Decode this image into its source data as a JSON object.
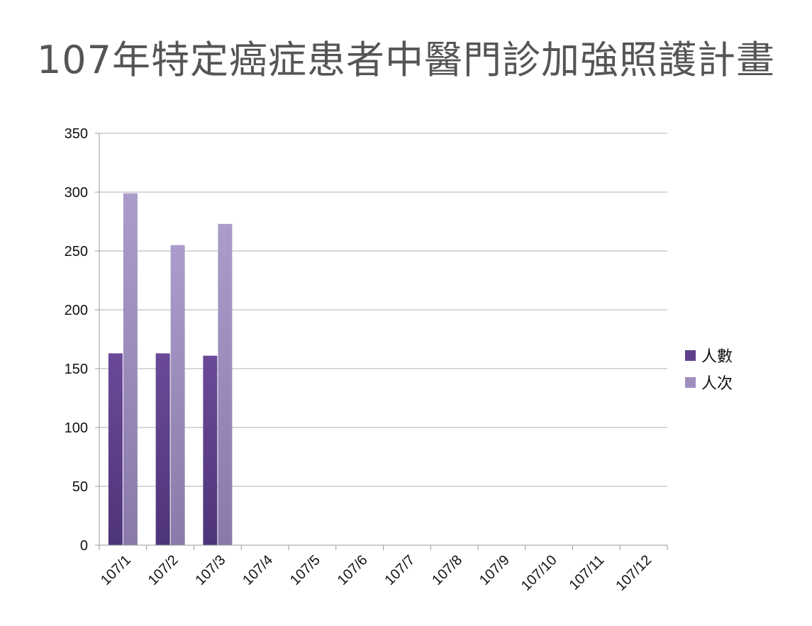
{
  "title": "107年特定癌症患者中醫門診加強照護計畫",
  "chart_data": {
    "type": "bar",
    "categories": [
      "107/1",
      "107/2",
      "107/3",
      "107/4",
      "107/5",
      "107/6",
      "107/7",
      "107/8",
      "107/9",
      "107/10",
      "107/11",
      "107/12"
    ],
    "series": [
      {
        "name": "人數",
        "values": [
          163,
          163,
          161,
          null,
          null,
          null,
          null,
          null,
          null,
          null,
          null,
          null
        ],
        "color": "#5e3f8a"
      },
      {
        "name": "人次",
        "values": [
          299,
          255,
          273,
          null,
          null,
          null,
          null,
          null,
          null,
          null,
          null,
          null
        ],
        "color": "#9f8fbf"
      }
    ],
    "ylim": [
      0,
      350
    ],
    "yticks": [
      0,
      50,
      100,
      150,
      200,
      250,
      300,
      350
    ],
    "grid": true,
    "legend_position": "right"
  }
}
